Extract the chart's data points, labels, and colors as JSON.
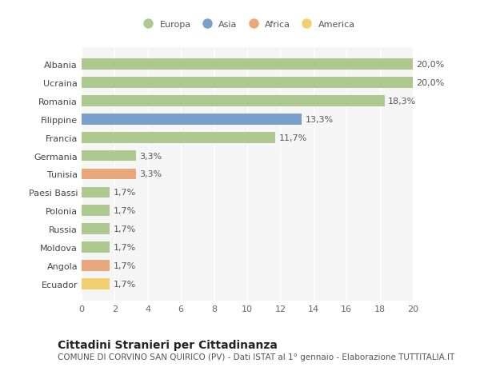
{
  "categories": [
    "Albania",
    "Ucraina",
    "Romania",
    "Filippine",
    "Francia",
    "Germania",
    "Tunisia",
    "Paesi Bassi",
    "Polonia",
    "Russia",
    "Moldova",
    "Angola",
    "Ecuador"
  ],
  "values": [
    20.0,
    20.0,
    18.3,
    13.3,
    11.7,
    3.3,
    3.3,
    1.7,
    1.7,
    1.7,
    1.7,
    1.7,
    1.7
  ],
  "labels": [
    "20,0%",
    "20,0%",
    "18,3%",
    "13,3%",
    "11,7%",
    "3,3%",
    "3,3%",
    "1,7%",
    "1,7%",
    "1,7%",
    "1,7%",
    "1,7%",
    "1,7%"
  ],
  "colors": [
    "#adc990",
    "#adc990",
    "#adc990",
    "#7a9fca",
    "#adc990",
    "#adc990",
    "#e8a87c",
    "#adc990",
    "#adc990",
    "#adc990",
    "#adc990",
    "#e8a87c",
    "#f0d070"
  ],
  "legend_labels": [
    "Europa",
    "Asia",
    "Africa",
    "America"
  ],
  "legend_colors": [
    "#adc990",
    "#7a9fca",
    "#e8a87c",
    "#f0d070"
  ],
  "xlim": [
    0,
    20
  ],
  "xticks": [
    0,
    2,
    4,
    6,
    8,
    10,
    12,
    14,
    16,
    18,
    20
  ],
  "title": "Cittadini Stranieri per Cittadinanza",
  "subtitle": "COMUNE DI CORVINO SAN QUIRICO (PV) - Dati ISTAT al 1° gennaio - Elaborazione TUTTITALIA.IT",
  "background_color": "#ffffff",
  "plot_bg_color": "#f5f5f5",
  "grid_color": "#ffffff",
  "bar_height": 0.6,
  "label_fontsize": 8,
  "tick_fontsize": 8,
  "title_fontsize": 10,
  "subtitle_fontsize": 7.5
}
